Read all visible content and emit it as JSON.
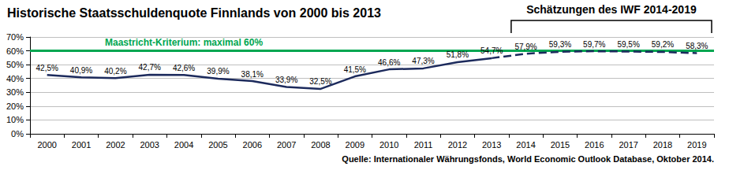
{
  "chart_data": {
    "type": "line",
    "title": "Historische Staatsschuldenquote Finnlands von 2000 bis 2013",
    "categories": [
      "2000",
      "2001",
      "2002",
      "2003",
      "2004",
      "2005",
      "2006",
      "2007",
      "2008",
      "2009",
      "2010",
      "2011",
      "2012",
      "2013",
      "2014",
      "2015",
      "2016",
      "2017",
      "2018",
      "2019"
    ],
    "series": [
      {
        "color": "#1c2a5c",
        "line_style": "solid",
        "values": [
          42.5,
          40.9,
          40.2,
          42.7,
          42.6,
          39.9,
          38.1,
          33.9,
          32.5,
          41.5,
          46.6,
          47.3,
          51.8,
          54.7,
          null,
          null,
          null,
          null,
          null,
          null
        ],
        "value_labels": [
          "42,5%",
          "40,9%",
          "40,2%",
          "42,7%",
          "42,6%",
          "39,9%",
          "38,1%",
          "33,9%",
          "32,5%",
          "41,5%",
          "46,6%",
          "47,3%",
          "51,8%",
          "54,7%",
          null,
          null,
          null,
          null,
          null,
          null
        ]
      },
      {
        "color": "#1c2a5c",
        "line_style": "dashed",
        "values": [
          null,
          null,
          null,
          null,
          null,
          null,
          null,
          null,
          null,
          null,
          null,
          null,
          null,
          54.7,
          57.9,
          59.3,
          59.7,
          59.5,
          59.2,
          58.3
        ],
        "value_labels": [
          null,
          null,
          null,
          null,
          null,
          null,
          null,
          null,
          null,
          null,
          null,
          null,
          null,
          null,
          "57,9%",
          "59,3%",
          "59,7%",
          "59,5%",
          "59,2%",
          "58,3%"
        ]
      }
    ],
    "ylim": [
      0,
      70
    ],
    "yticks": [
      {
        "value": 0,
        "label": "0%"
      },
      {
        "value": 10,
        "label": "10%"
      },
      {
        "value": 20,
        "label": "20%"
      },
      {
        "value": 30,
        "label": "30%"
      },
      {
        "value": 40,
        "label": "40%"
      },
      {
        "value": 50,
        "label": "50%"
      },
      {
        "value": 60,
        "label": "60%"
      },
      {
        "value": 70,
        "label": "70%"
      }
    ],
    "grid": true,
    "data_labels": true,
    "reference_line": {
      "value": 60,
      "label": "Maastricht-Kriterium: maximal 60%",
      "color": "#00a651"
    },
    "annotation": {
      "text": "Schätzungen des IWF 2014-2019",
      "from": "2014",
      "to": "2019"
    },
    "source": "Quelle: Internationaler Währungsfonds, World Economic Outlook Database, Oktober 2014."
  }
}
